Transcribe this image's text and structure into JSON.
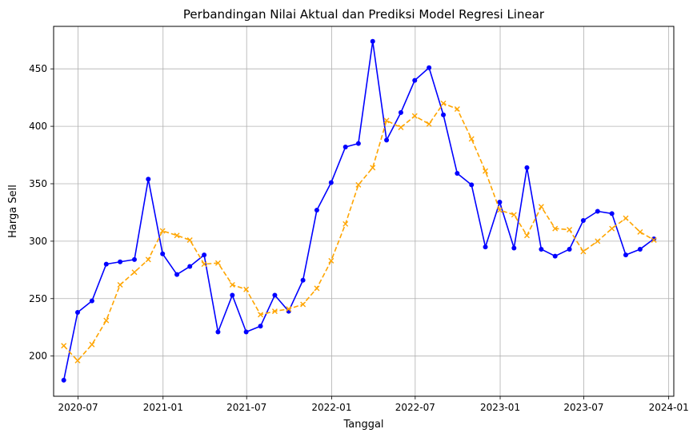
{
  "chart_data": {
    "type": "line",
    "title": "Perbandingan Nilai Aktual dan Prediksi Model Regresi Linear",
    "xlabel": "Tanggal",
    "ylabel": "Harga Sell",
    "grid": true,
    "x_ticks": [
      "2020-07",
      "2021-01",
      "2021-07",
      "2022-01",
      "2022-07",
      "2023-01",
      "2023-07",
      "2024-01"
    ],
    "y_ticks": [
      200,
      250,
      300,
      350,
      400,
      450
    ],
    "ylim": [
      165,
      487
    ],
    "xlim": [
      "2020-05-09",
      "2024-01-12"
    ],
    "x": [
      "2020-05-31",
      "2020-06-30",
      "2020-07-31",
      "2020-08-31",
      "2020-09-30",
      "2020-10-31",
      "2020-11-30",
      "2020-12-31",
      "2021-01-31",
      "2021-02-28",
      "2021-03-31",
      "2021-04-30",
      "2021-05-31",
      "2021-06-30",
      "2021-07-31",
      "2021-08-31",
      "2021-09-30",
      "2021-10-31",
      "2021-11-30",
      "2021-12-31",
      "2022-01-31",
      "2022-02-28",
      "2022-03-31",
      "2022-04-30",
      "2022-05-31",
      "2022-06-30",
      "2022-07-31",
      "2022-08-31",
      "2022-09-30",
      "2022-10-31",
      "2022-11-30",
      "2022-12-31",
      "2023-01-31",
      "2023-02-28",
      "2023-03-31",
      "2023-04-30",
      "2023-05-31",
      "2023-06-30",
      "2023-07-31",
      "2023-08-31",
      "2023-09-30",
      "2023-10-31",
      "2023-11-30"
    ],
    "series": [
      {
        "style": "solid",
        "marker": "circle",
        "color": "#0000ff",
        "values": [
          179,
          238,
          248,
          280,
          282,
          284,
          354,
          289,
          271,
          278,
          288,
          221,
          253,
          221,
          226,
          253,
          239,
          266,
          327,
          351,
          382,
          385,
          474,
          388,
          412,
          440,
          451,
          410,
          359,
          349,
          295,
          334,
          294,
          364,
          293,
          287,
          293,
          318,
          326,
          324,
          288,
          293,
          302
        ]
      },
      {
        "style": "dashed",
        "marker": "x",
        "color": "#ffa500",
        "values": [
          209,
          196,
          210,
          231,
          262,
          273,
          284,
          309,
          305,
          301,
          280,
          281,
          262,
          258,
          236,
          239,
          241,
          245,
          259,
          283,
          315,
          349,
          364,
          405,
          399,
          409,
          402,
          420,
          415,
          389,
          361,
          327,
          323,
          305,
          330,
          311,
          310,
          291,
          300,
          311,
          320,
          308,
          301
        ]
      }
    ]
  }
}
